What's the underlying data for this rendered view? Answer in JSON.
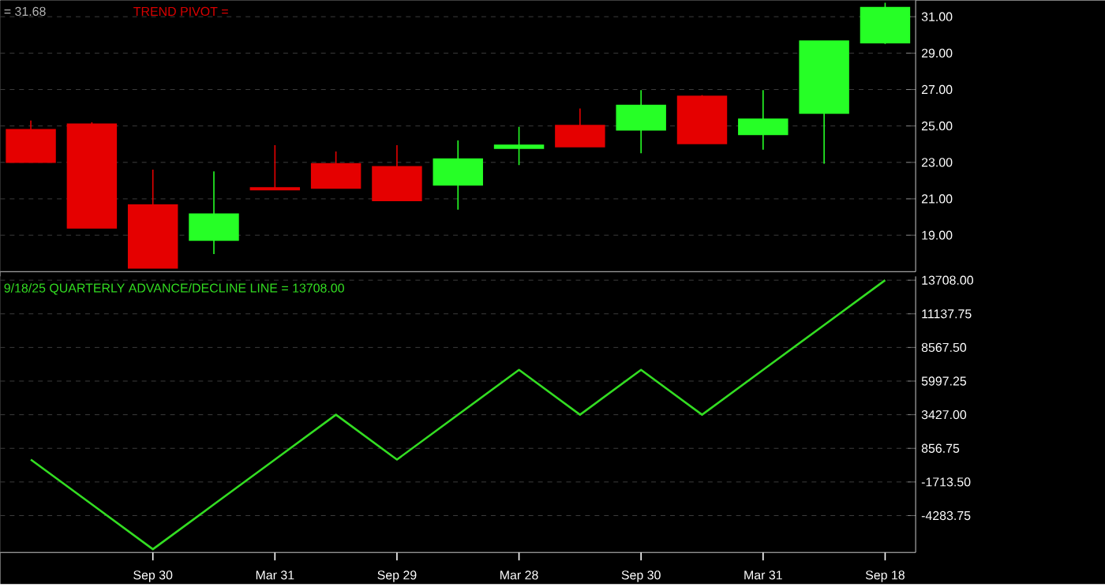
{
  "chart_data": [
    {
      "type": "candlestick",
      "categories": [
        null,
        null,
        null,
        null,
        null,
        null,
        null,
        null,
        null,
        null,
        null,
        null,
        null,
        null,
        null
      ],
      "ohlc": [
        [
          24.8,
          25.3,
          23.0,
          23.0
        ],
        [
          25.1,
          25.2,
          19.4,
          19.4
        ],
        [
          20.66,
          22.6,
          17.2,
          17.2
        ],
        [
          18.73,
          22.5,
          17.97,
          20.16
        ],
        [
          21.6,
          23.94,
          21.5,
          21.5
        ],
        [
          22.93,
          23.6,
          21.59,
          21.59
        ],
        [
          22.76,
          23.94,
          20.9,
          20.9
        ],
        [
          21.76,
          24.2,
          20.4,
          23.18
        ],
        [
          23.77,
          24.95,
          22.85,
          23.94
        ],
        [
          25.03,
          25.96,
          23.86,
          23.86
        ],
        [
          24.78,
          26.97,
          23.5,
          26.13
        ],
        [
          26.63,
          26.7,
          24.0,
          24.03
        ],
        [
          24.53,
          26.97,
          23.7,
          25.37
        ],
        [
          25.7,
          29.66,
          22.93,
          29.66
        ],
        [
          29.57,
          31.76,
          29.5,
          31.5
        ]
      ],
      "ylim": [
        17.0,
        31.9
      ],
      "yticks": [
        {
          "value": 19,
          "label": "19.00"
        },
        {
          "value": 21,
          "label": "21.00"
        },
        {
          "value": 23,
          "label": "23.00"
        },
        {
          "value": 25,
          "label": "25.00"
        },
        {
          "value": 27,
          "label": "27.00"
        },
        {
          "value": 29,
          "label": "29.00"
        },
        {
          "value": 31,
          "label": "31.00"
        }
      ],
      "grid": "y",
      "tick_labels": "y",
      "annotations": [
        "= 31.68",
        "TREND PIVOT ="
      ]
    },
    {
      "type": "line",
      "categories": [
        null,
        null,
        "Sep 30",
        null,
        "Mar 31",
        null,
        "Sep 29",
        null,
        "Mar 28",
        null,
        "Sep 30",
        null,
        "Mar 31",
        null,
        "Sep 18"
      ],
      "series": [
        {
          "color": "#33dd22",
          "values": [
            0,
            -3427,
            -6854,
            -3427,
            0,
            3427,
            0,
            3427,
            6854,
            3427,
            6854,
            3427,
            6854,
            10281,
            13708
          ]
        }
      ],
      "ylim": [
        -7100,
        14000
      ],
      "yticks": [
        {
          "value": -4283.75,
          "label": "-4283.75"
        },
        {
          "value": -1713.5,
          "label": "-1713.50"
        },
        {
          "value": 856.75,
          "label": "856.75"
        },
        {
          "value": 3427,
          "label": "3427.00"
        },
        {
          "value": 5997.25,
          "label": "5997.25"
        },
        {
          "value": 8567.5,
          "label": "8567.50"
        },
        {
          "value": 11137.75,
          "label": "11137.75"
        },
        {
          "value": 13708,
          "label": "13708.00"
        }
      ],
      "grid": "y",
      "marker": "none",
      "line_style": "solid",
      "annotations": [
        "9/18/25  QUARTERLY ADVANCE/DECLINE LINE = 13708.00"
      ]
    }
  ]
}
